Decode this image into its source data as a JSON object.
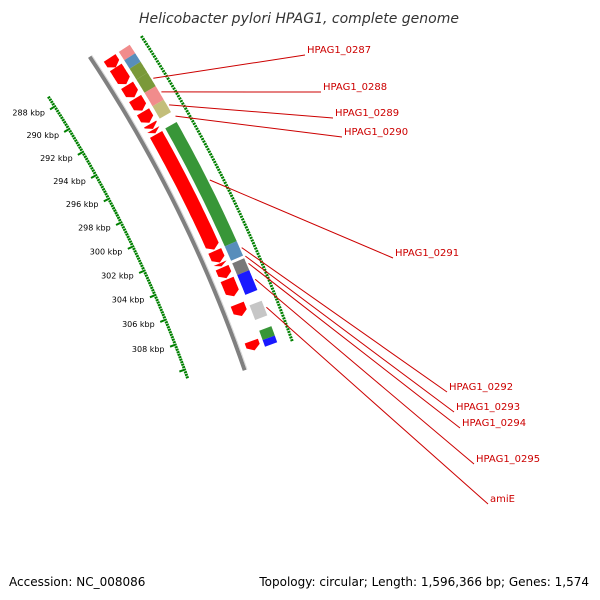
{
  "title": "Helicobacter pylori HPAG1, complete genome",
  "footer": {
    "accession": "Accession: NC_008086",
    "summary": "Topology: circular; Length: 1,596,366 bp; Genes: 1,574"
  },
  "axis": {
    "unit": "kbp",
    "ticks": [
      {
        "label": "288 kbp",
        "kbp": 288
      },
      {
        "label": "290 kbp",
        "kbp": 290
      },
      {
        "label": "292 kbp",
        "kbp": 292
      },
      {
        "label": "294 kbp",
        "kbp": 294
      },
      {
        "label": "296 kbp",
        "kbp": 296
      },
      {
        "label": "298 kbp",
        "kbp": 298
      },
      {
        "label": "300 kbp",
        "kbp": 300
      },
      {
        "label": "302 kbp",
        "kbp": 302
      },
      {
        "label": "304 kbp",
        "kbp": 304
      },
      {
        "label": "306 kbp",
        "kbp": 306
      },
      {
        "label": "308 kbp",
        "kbp": 308
      }
    ]
  },
  "colors": {
    "cds": "#ff0000",
    "backbone": "#808080",
    "tick": "#008000",
    "label": "#cc0000"
  },
  "genes": [
    {
      "name": "HPAG1_0287",
      "start_kbp": 289.5,
      "end_kbp": 290.6,
      "color": "#6b8e23"
    },
    {
      "name": "HPAG1_0288",
      "start_kbp": 290.6,
      "end_kbp": 291.7,
      "color": "#f08080"
    },
    {
      "name": "HPAG1_0289",
      "start_kbp": 291.7,
      "end_kbp": 292.7,
      "color": "#bdb76b"
    },
    {
      "name": "HPAG1_0290",
      "start_kbp": 292.7,
      "end_kbp": 293.5,
      "color": "#ff0000"
    },
    {
      "name": "HPAG1_0291",
      "start_kbp": 293.5,
      "end_kbp": 302.8,
      "color": "#228b22"
    },
    {
      "name": "HPAG1_0292",
      "start_kbp": 302.8,
      "end_kbp": 303.9,
      "color": "#4682b4"
    },
    {
      "name": "HPAG1_0293",
      "start_kbp": 303.9,
      "end_kbp": 304.1,
      "color": "#ff0000"
    },
    {
      "name": "HPAG1_0294",
      "start_kbp": 304.1,
      "end_kbp": 305.0,
      "color": "#696969"
    },
    {
      "name": "HPAG1_0295",
      "start_kbp": 305.0,
      "end_kbp": 306.5,
      "color": "#0000ff"
    },
    {
      "name": "amiE",
      "start_kbp": 307.3,
      "end_kbp": 308.4,
      "color": "#c0c0c0"
    }
  ]
}
